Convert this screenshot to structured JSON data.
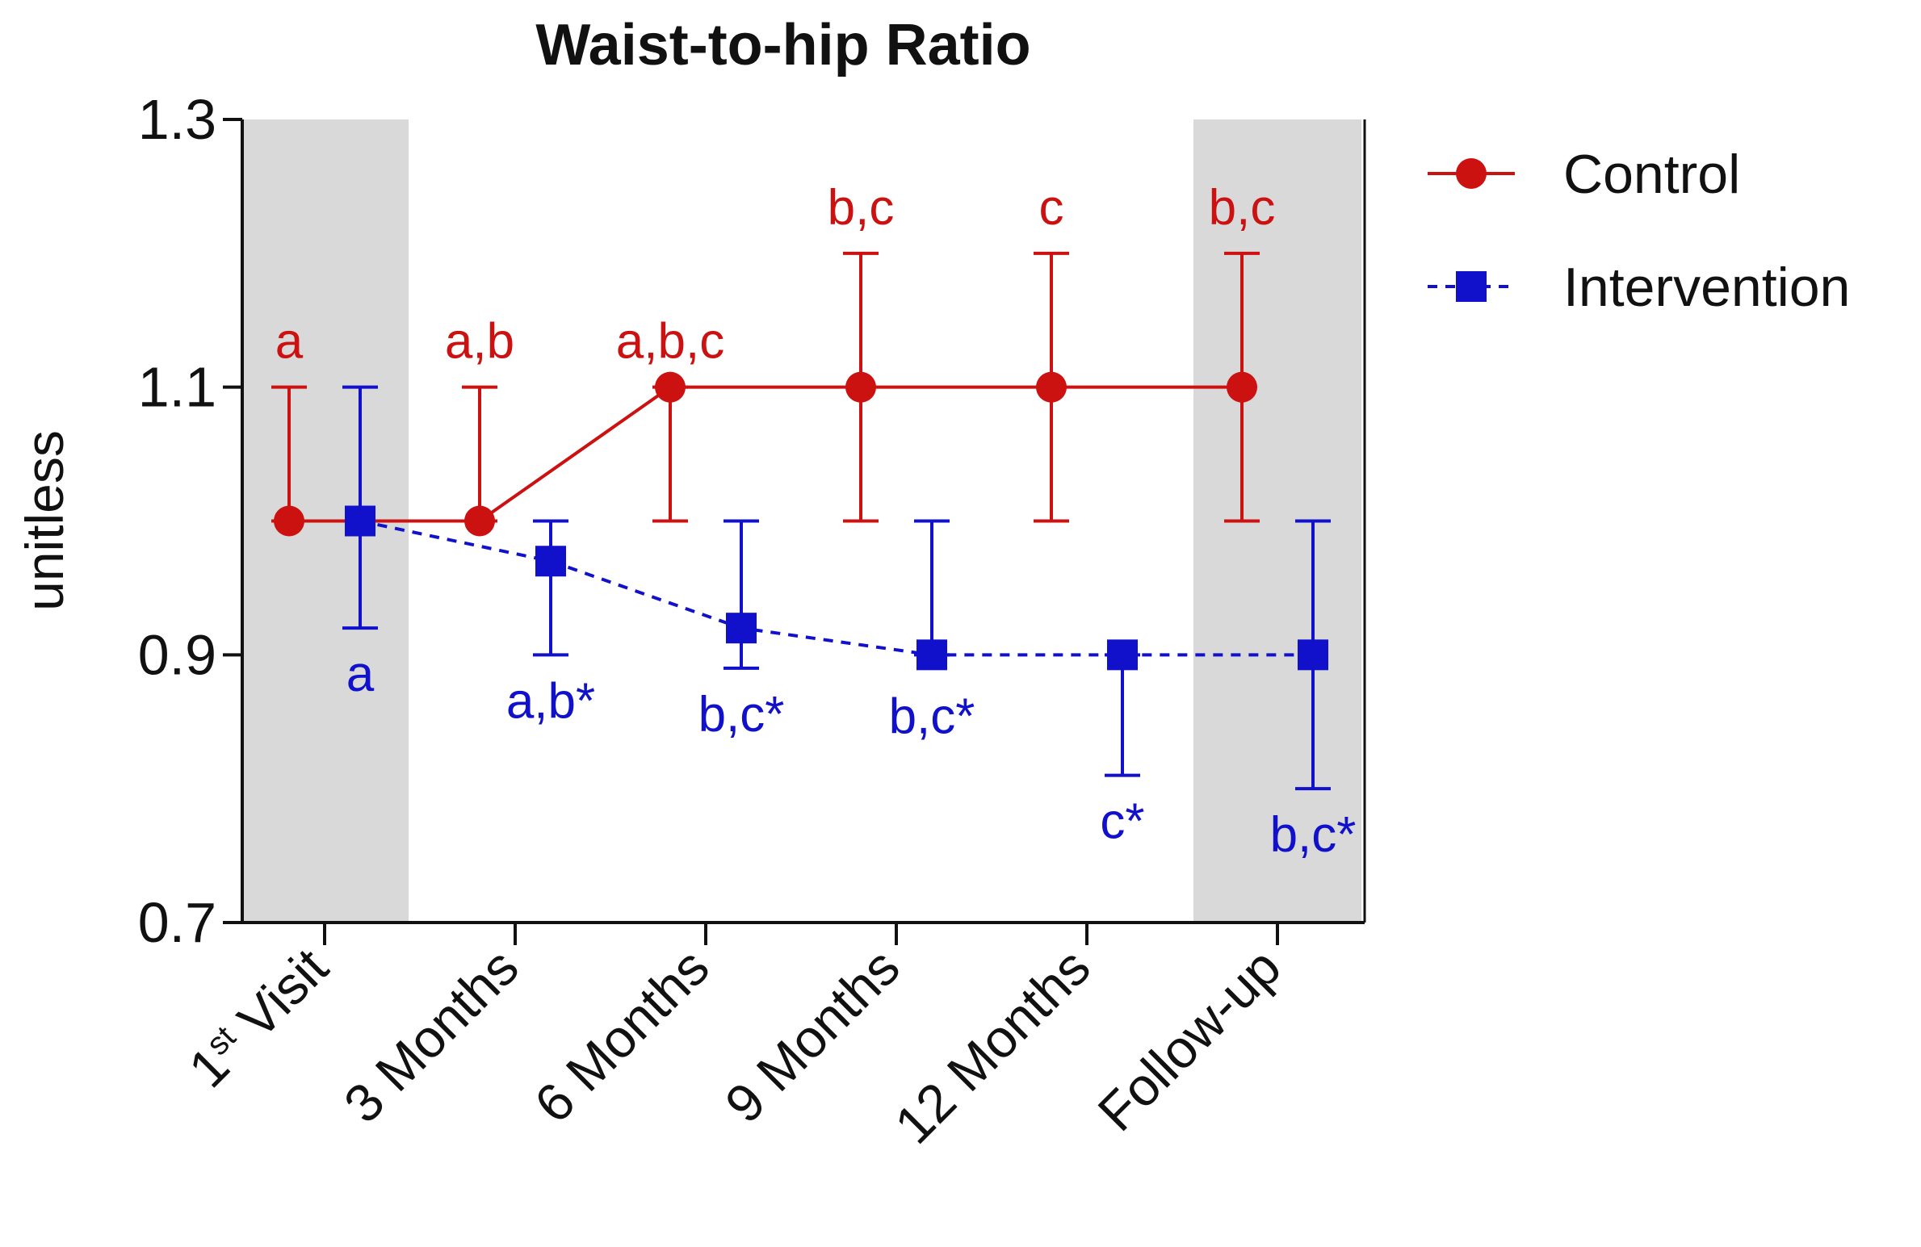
{
  "chart_data": {
    "type": "line",
    "title": "Waist-to-hip Ratio",
    "ylabel": "unitless",
    "xlabel": "",
    "ylim": [
      0.7,
      1.3
    ],
    "yticks": [
      0.7,
      0.9,
      1.1,
      1.3
    ],
    "ytick_labels": [
      "0.7",
      "0.9",
      "1.1",
      "1.3"
    ],
    "grid": false,
    "legend_position": "right",
    "categories": [
      {
        "main": "1",
        "sup": "st",
        "rest": " Visit"
      },
      {
        "main": "3 Months",
        "sup": "",
        "rest": ""
      },
      {
        "main": "6 Months",
        "sup": "",
        "rest": ""
      },
      {
        "main": "9 Months",
        "sup": "",
        "rest": ""
      },
      {
        "main": "12 Months",
        "sup": "",
        "rest": ""
      },
      {
        "main": "Follow-up",
        "sup": "",
        "rest": ""
      }
    ],
    "shaded_categories": [
      0,
      5
    ],
    "series": [
      {
        "name": "Control",
        "color": "#cc1111",
        "marker": "circle",
        "line_style": "solid",
        "values": [
          1.0,
          1.0,
          1.1,
          1.1,
          1.1,
          1.1
        ],
        "error_low": [
          1.0,
          1.0,
          1.0,
          1.0,
          1.0,
          1.0
        ],
        "error_high": [
          1.1,
          1.1,
          1.1,
          1.2,
          1.2,
          1.2
        ],
        "annotations": [
          "a",
          "a,b",
          "a,b,c",
          "b,c",
          "c",
          "b,c"
        ]
      },
      {
        "name": "Intervention",
        "color": "#1111cc",
        "marker": "square",
        "line_style": "dashed",
        "values": [
          1.0,
          0.97,
          0.92,
          0.9,
          0.9,
          0.9
        ],
        "error_low": [
          0.92,
          0.9,
          0.89,
          0.9,
          0.81,
          0.8
        ],
        "error_high": [
          1.1,
          1.0,
          1.0,
          1.0,
          0.9,
          1.0
        ],
        "annotations": [
          "a",
          "a,b*",
          "b,c*",
          "b,c*",
          "c*",
          "b,c*"
        ]
      }
    ]
  }
}
